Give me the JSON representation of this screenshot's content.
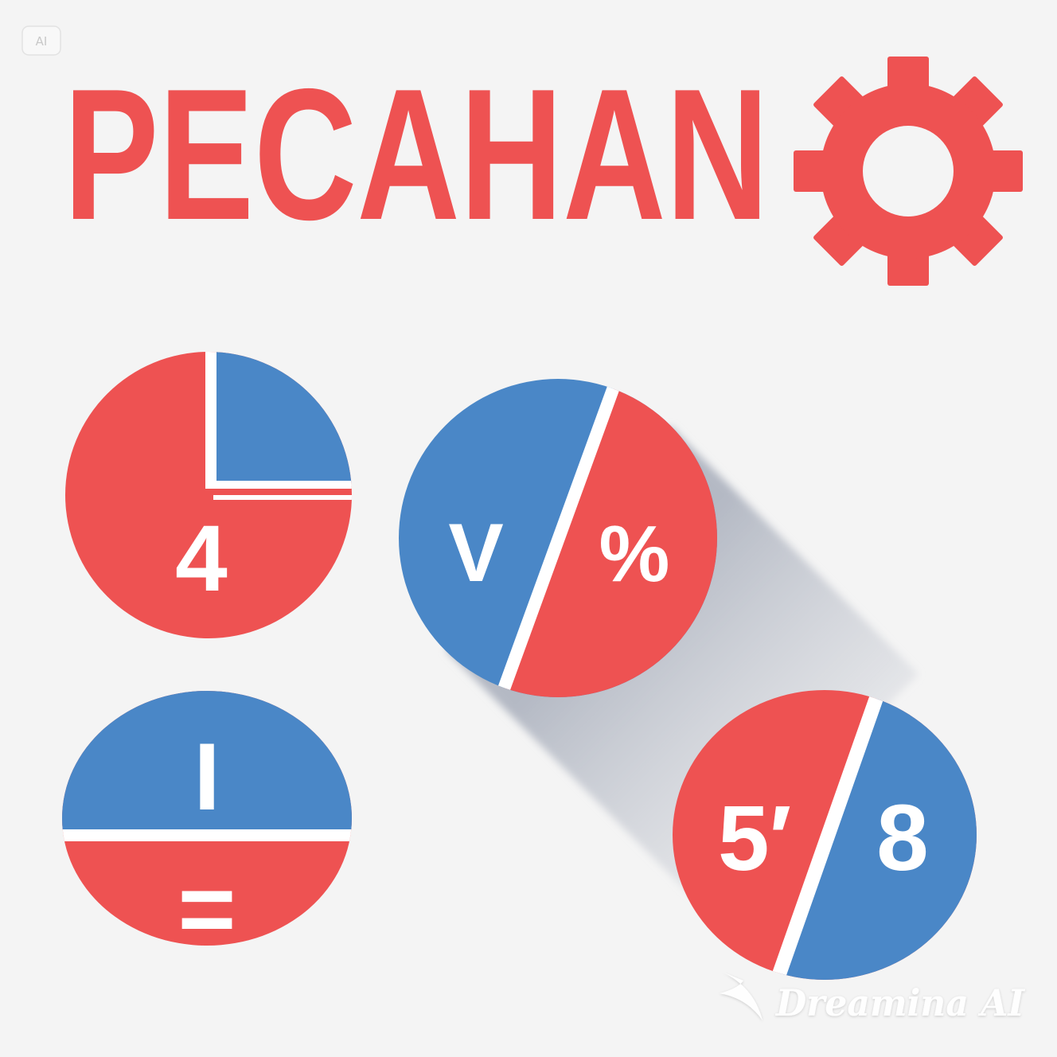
{
  "badge": {
    "label": "AI"
  },
  "title": "PECAHAN",
  "colors": {
    "red": "#ee5252",
    "blue": "#4a87c7",
    "background": "#f4f4f4",
    "white": "#ffffff"
  },
  "icons": [
    "gear-icon",
    "dreamina-logo-icon"
  ],
  "circles": {
    "quarter": {
      "label": "4"
    },
    "diagonal_top": {
      "left_label": "V",
      "right_label": "%"
    },
    "half": {
      "top_label": "I",
      "bottom_label": "="
    },
    "diagonal_bottom": {
      "left_label": "5′",
      "right_label": "8"
    }
  },
  "watermark": {
    "text": "Dreamina AI"
  }
}
